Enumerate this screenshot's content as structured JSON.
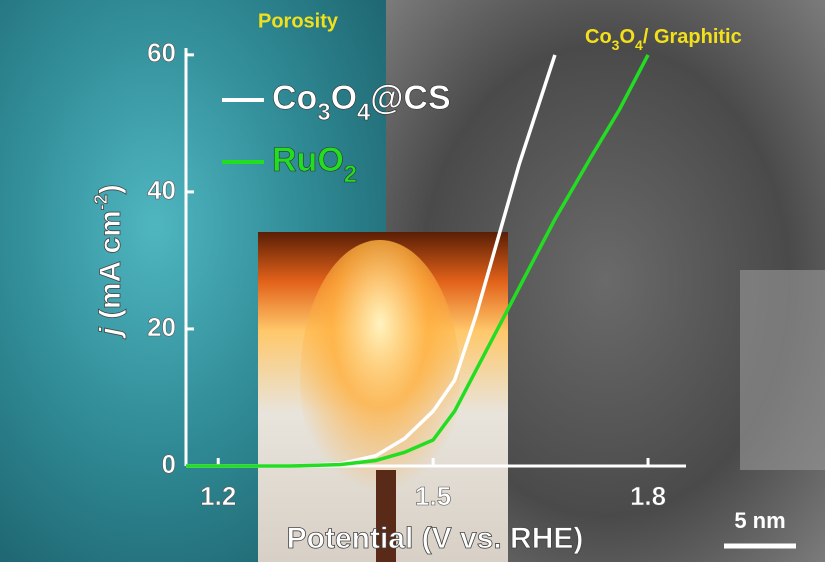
{
  "chart_data": {
    "type": "line",
    "annotations": [
      "Porosity",
      "Co3O4/ Graphitic",
      "5 nm"
    ],
    "x_label": "Potential (V vs. RHE)",
    "y_label": "j (mA cm-2)",
    "x": [
      1.155,
      1.3,
      1.37,
      1.42,
      1.46,
      1.5,
      1.53,
      1.56,
      1.59,
      1.62,
      1.67,
      1.72,
      1.76,
      1.8
    ],
    "series": [
      {
        "name": "Co3O4@CS",
        "color": "#ffffff",
        "values": [
          0,
          0,
          0.3,
          1.5,
          4,
          8,
          12.5,
          22,
          33,
          44,
          60,
          null,
          null,
          null
        ]
      },
      {
        "name": "RuO2",
        "color": "#22dd22",
        "values": [
          0,
          0,
          0.2,
          0.8,
          2,
          3.8,
          8,
          14,
          20,
          26,
          36,
          45,
          52,
          60
        ]
      }
    ],
    "xlim": [
      1.155,
      1.853
    ],
    "ylim": [
      0,
      61
    ],
    "xticks": [
      1.2,
      1.5,
      1.8
    ],
    "yticks": [
      0,
      20,
      40,
      60
    ],
    "legend": "upper left"
  }
}
